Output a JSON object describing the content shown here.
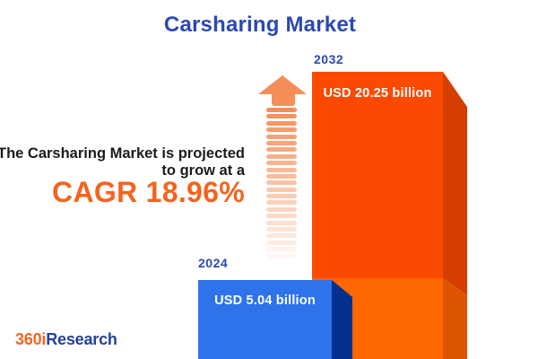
{
  "title": "Carsharing Market",
  "annotation": {
    "line1": "The Carsharing Market is projected",
    "line2": "to grow at a",
    "cagr_label": "CAGR 18.96%"
  },
  "bars": [
    {
      "year": "2024",
      "value_label": "USD 5.04 billion"
    },
    {
      "year": "2032",
      "value_label": "USD 20.25 billion"
    }
  ],
  "logo": {
    "prefix": "360i",
    "suffix": "Research"
  },
  "colors": {
    "title_blue": "#2b49b2",
    "text_dark": "#1b1b1b",
    "cagr_orange": "#f4641f",
    "arrow_orange": "#f68e59",
    "bar2024_front": "#2e73ea",
    "bar2024_side": "#05308d",
    "bar2032_front": "#fa4a02",
    "bar2032_side": "#d63e00",
    "bar2032_lower_front": "#fe6602",
    "bar2032_lower_side": "#dd5500",
    "logo_orange": "#f26522",
    "logo_blue": "#24409e"
  },
  "chart_data": {
    "type": "bar",
    "title": "Carsharing Market",
    "categories": [
      "2024",
      "2032"
    ],
    "values": [
      5.04,
      20.25
    ],
    "unit": "USD billion",
    "value_labels": [
      "USD 5.04 billion",
      "USD 20.25 billion"
    ],
    "cagr_percent": 18.96,
    "ylim": [
      0,
      22
    ],
    "grid": false,
    "legend": false,
    "bar_colors": [
      "#2e73ea",
      "#fa4a02"
    ],
    "annotation": "The Carsharing Market is projected to grow at a CAGR 18.96%"
  }
}
